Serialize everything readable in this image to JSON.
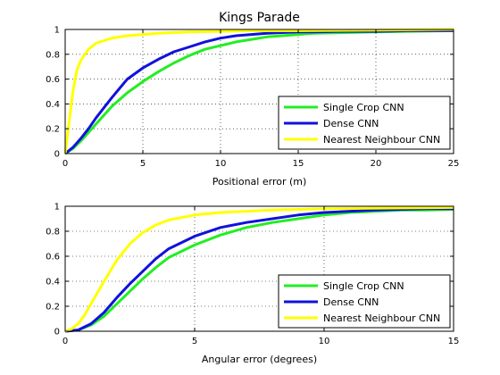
{
  "chart_data": [
    {
      "type": "line",
      "title": "Kings Parade",
      "xlabel": "Positional error (m)",
      "ylabel": "",
      "xlim": [
        0,
        25
      ],
      "ylim": [
        0,
        1
      ],
      "xticks": [
        0,
        5,
        10,
        15,
        20,
        25
      ],
      "yticks": [
        0,
        0.2,
        0.4,
        0.6,
        0.8,
        1
      ],
      "grid": true,
      "legend_position": "bottom-right",
      "series": [
        {
          "name": "Single Crop CNN",
          "color": "#22ee22",
          "x": [
            0,
            0.5,
            1,
            1.5,
            2,
            3,
            4,
            5,
            6,
            7,
            8,
            9,
            10,
            11,
            12,
            13,
            14,
            15,
            16,
            18,
            20,
            22,
            25
          ],
          "y": [
            0,
            0.04,
            0.1,
            0.17,
            0.24,
            0.38,
            0.49,
            0.58,
            0.66,
            0.73,
            0.79,
            0.84,
            0.87,
            0.9,
            0.92,
            0.94,
            0.95,
            0.96,
            0.97,
            0.975,
            0.98,
            0.985,
            0.99
          ]
        },
        {
          "name": "Dense CNN",
          "color": "#1111dd",
          "x": [
            0,
            0.5,
            1,
            1.5,
            2,
            3,
            4,
            5,
            6,
            7,
            8,
            9,
            10,
            11,
            12,
            13,
            14,
            15,
            16,
            18,
            20,
            22,
            25
          ],
          "y": [
            0,
            0.05,
            0.12,
            0.2,
            0.29,
            0.45,
            0.6,
            0.69,
            0.76,
            0.82,
            0.86,
            0.9,
            0.93,
            0.95,
            0.96,
            0.97,
            0.975,
            0.98,
            0.98,
            0.985,
            0.985,
            0.99,
            0.99
          ]
        },
        {
          "name": "Nearest Neighbour CNN",
          "color": "#ffff00",
          "x": [
            0,
            0.25,
            0.5,
            0.75,
            1,
            1.5,
            2,
            2.5,
            3,
            4,
            5,
            6,
            8,
            10,
            12,
            15,
            20,
            25
          ],
          "y": [
            0,
            0.25,
            0.5,
            0.67,
            0.75,
            0.84,
            0.89,
            0.91,
            0.93,
            0.95,
            0.96,
            0.97,
            0.98,
            0.985,
            0.99,
            0.99,
            0.995,
            1
          ]
        }
      ]
    },
    {
      "type": "line",
      "title": "",
      "xlabel": "Angular error (degrees)",
      "ylabel": "",
      "xlim": [
        0,
        15
      ],
      "ylim": [
        0,
        1
      ],
      "xticks": [
        0,
        5,
        10,
        15
      ],
      "yticks": [
        0,
        0.2,
        0.4,
        0.6,
        0.8,
        1
      ],
      "grid": true,
      "legend_position": "bottom-right",
      "series": [
        {
          "name": "Single Crop CNN",
          "color": "#22ee22",
          "x": [
            0,
            0.5,
            1,
            1.5,
            2,
            2.5,
            3,
            3.5,
            4,
            5,
            6,
            7,
            8,
            9,
            10,
            11,
            12,
            13,
            14,
            15
          ],
          "y": [
            0,
            0.01,
            0.05,
            0.12,
            0.22,
            0.32,
            0.42,
            0.51,
            0.59,
            0.69,
            0.77,
            0.83,
            0.87,
            0.9,
            0.93,
            0.95,
            0.96,
            0.97,
            0.97,
            0.975
          ]
        },
        {
          "name": "Dense CNN",
          "color": "#1111dd",
          "x": [
            0,
            0.5,
            1,
            1.5,
            2,
            2.5,
            3,
            3.5,
            4,
            5,
            6,
            7,
            8,
            9,
            10,
            11,
            12,
            13,
            14,
            15
          ],
          "y": [
            0,
            0.01,
            0.06,
            0.15,
            0.27,
            0.38,
            0.48,
            0.58,
            0.66,
            0.76,
            0.83,
            0.87,
            0.9,
            0.93,
            0.95,
            0.96,
            0.97,
            0.975,
            0.98,
            0.98
          ]
        },
        {
          "name": "Nearest Neighbour CNN",
          "color": "#ffff00",
          "x": [
            0,
            0.25,
            0.5,
            0.75,
            1,
            1.5,
            2,
            2.5,
            3,
            3.5,
            4,
            5,
            6,
            7,
            8,
            10,
            12,
            15
          ],
          "y": [
            0,
            0.02,
            0.06,
            0.13,
            0.22,
            0.4,
            0.57,
            0.7,
            0.79,
            0.85,
            0.89,
            0.93,
            0.95,
            0.96,
            0.97,
            0.98,
            0.985,
            0.99
          ]
        }
      ]
    }
  ]
}
